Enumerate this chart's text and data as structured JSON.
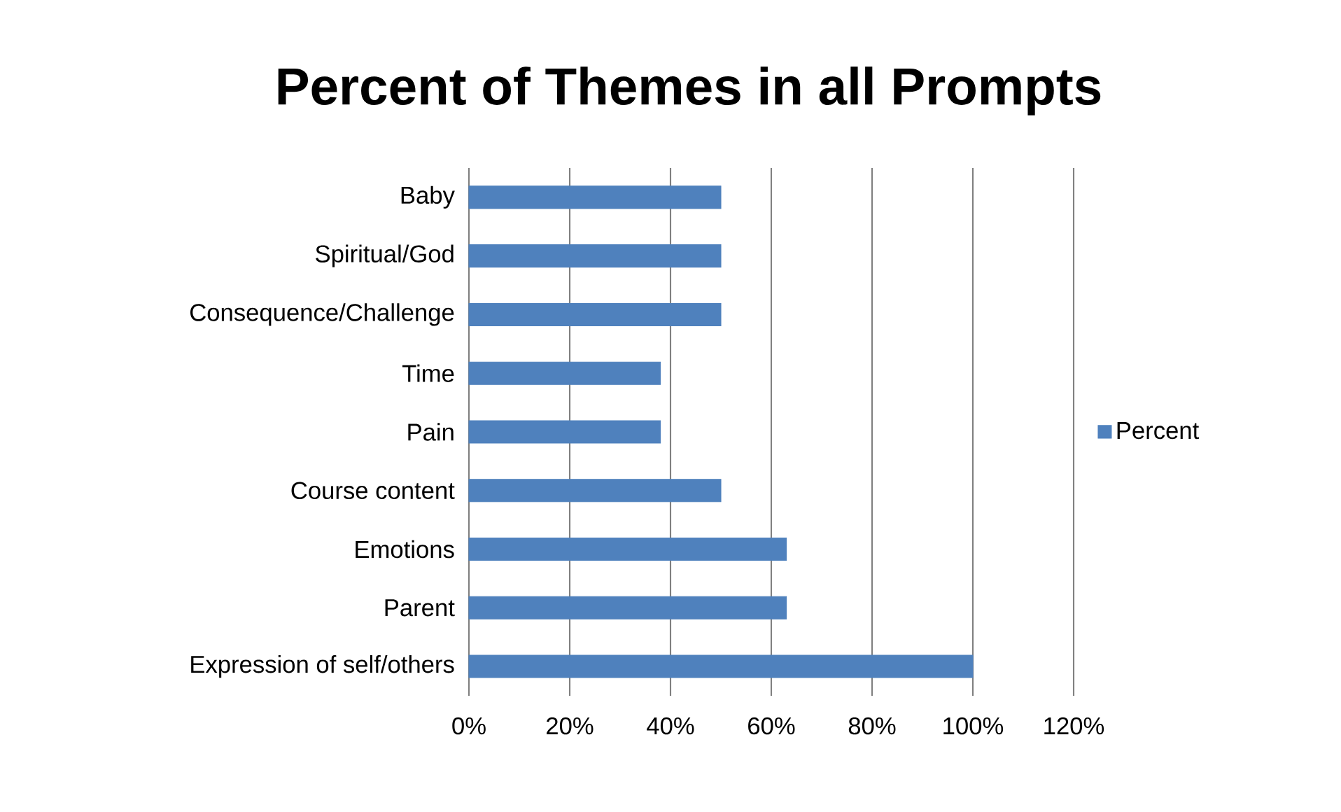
{
  "chart_data": {
    "type": "bar",
    "orientation": "horizontal",
    "title": "Percent of Themes in all Prompts",
    "categories": [
      "Baby",
      "Spiritual/God",
      "Consequence/Challenge",
      "Time",
      "Pain",
      "Course content",
      "Emotions",
      "Parent",
      "Expression of self/others"
    ],
    "series": [
      {
        "name": "Percent",
        "color": "#4f81bd",
        "values": [
          50,
          50,
          50,
          38,
          38,
          50,
          63,
          63,
          100
        ]
      }
    ],
    "xlim": [
      0,
      120
    ],
    "xticks": [
      {
        "value": 0,
        "label": "0%"
      },
      {
        "value": 20,
        "label": "20%"
      },
      {
        "value": 40,
        "label": "40%"
      },
      {
        "value": 60,
        "label": "60%"
      },
      {
        "value": 80,
        "label": "80%"
      },
      {
        "value": 100,
        "label": "100%"
      },
      {
        "value": 120,
        "label": "120%"
      }
    ],
    "grid": "x",
    "legend": "right"
  }
}
